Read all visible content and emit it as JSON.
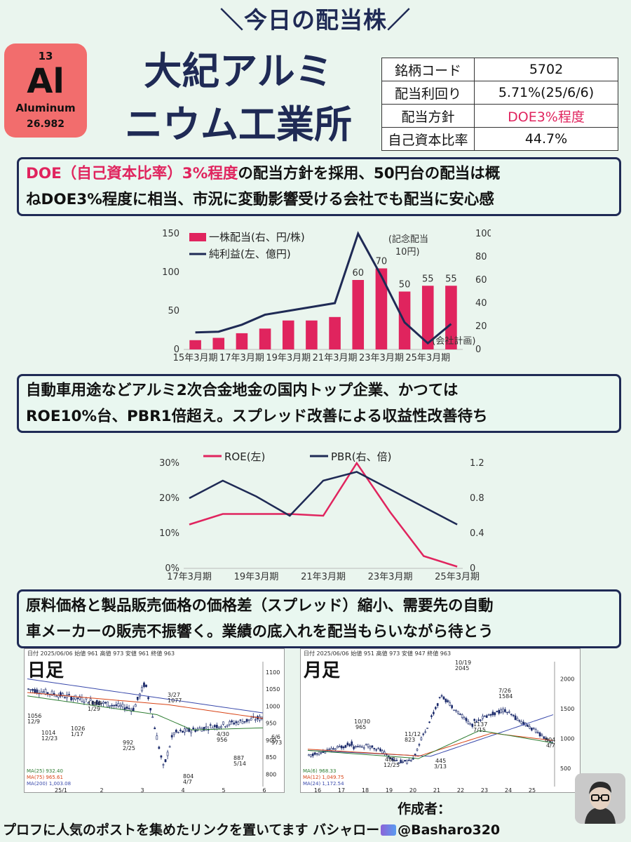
{
  "banner": "＼今日の配当株／",
  "element": {
    "number": "13",
    "symbol": "Al",
    "name": "Aluminum",
    "weight": "26.982"
  },
  "company": {
    "line1": "大紀アルミ",
    "line2": "ニウム工業所"
  },
  "info": {
    "rows": [
      {
        "key": "銘柄コード",
        "value": "5702"
      },
      {
        "key": "配当利回り",
        "value": "5.71%(25/6/6)"
      },
      {
        "key": "配当方針",
        "value": "DOE3%程度"
      },
      {
        "key": "自己資本比率",
        "value": "44.7%"
      }
    ]
  },
  "notes": {
    "n1": {
      "red": "DOE（自己資本比率）3%程度",
      "rest1": "の配当方針を採用、50円台の配当は概",
      "line2": "ねDOE3%程度に相当、市況に変動影響受ける会社でも配当に安心感"
    },
    "n2": {
      "line1": "自動車用途などアルミ2次合金地金の国内トップ企業、かつては",
      "line2": "ROE10%台、PBR1倍超え。スプレッド改善による収益性改善待ち"
    },
    "n3": {
      "line1": "原料価格と製品販売価格の価格差（スプレッド）縮小、需要先の自動",
      "line2": "車メーカーの販売不振響く。業績の底入れを配当もらいながら待とう"
    }
  },
  "colors": {
    "navy": "#1f2a55",
    "pink": "#e0245e",
    "tile": "#f26d6d"
  },
  "chart_data": [
    {
      "type": "bar",
      "legend": [
        "一株配当(右、円/株)",
        "純利益(左、億円)"
      ],
      "categories": [
        "15年3月期",
        "16年3月期",
        "17年3月期",
        "18年3月期",
        "19年3月期",
        "20年3月期",
        "21年3月期",
        "22年3月期",
        "23年3月期",
        "24年3月期",
        "25年3月期",
        "26年3月期"
      ],
      "xtick_labels": [
        "15年3月期",
        "17年3月期",
        "19年3月期",
        "21年3月期",
        "23年3月期",
        "25年3月期"
      ],
      "series": [
        {
          "name": "一株配当(右、円/株)",
          "axis": "right",
          "type": "bar",
          "values": [
            8,
            10,
            14,
            18,
            25,
            25,
            28,
            60,
            70,
            50,
            55,
            55
          ]
        },
        {
          "name": "純利益(左、億円)",
          "axis": "left",
          "type": "line",
          "values": [
            22,
            23,
            32,
            45,
            50,
            55,
            60,
            150,
            95,
            35,
            8,
            33
          ]
        }
      ],
      "data_labels": {
        "8": "60",
        "9": "70",
        "10": "50",
        "11": "55",
        "12": "55"
      },
      "annotations": [
        "(記念配当",
        "10円)",
        "(会社計画)"
      ],
      "yticks_left": [
        "0",
        "50",
        "100",
        "150"
      ],
      "yticks_right": [
        "0",
        "20",
        "40",
        "60",
        "80",
        "100"
      ],
      "ylim_left": [
        0,
        150
      ],
      "ylim_right": [
        0,
        100
      ]
    },
    {
      "type": "line",
      "legend": [
        "ROE(左)",
        "PBR(右、倍)"
      ],
      "categories": [
        "17年3月期",
        "18年3月期",
        "19年3月期",
        "20年3月期",
        "21年3月期",
        "22年3月期",
        "23年3月期",
        "24年3月期",
        "25年3月期"
      ],
      "xtick_labels": [
        "17年3月期",
        "19年3月期",
        "21年3月期",
        "23年3月期",
        "25年3月期"
      ],
      "series": [
        {
          "name": "ROE(左)",
          "axis": "left",
          "values": [
            12.5,
            15.5,
            15.5,
            15.5,
            15,
            30,
            16,
            3.5,
            0.5
          ]
        },
        {
          "name": "PBR(右、倍)",
          "axis": "right",
          "values": [
            0.8,
            1.0,
            0.82,
            0.6,
            1.0,
            1.1,
            0.9,
            0.7,
            0.5
          ]
        }
      ],
      "yticks_left": [
        "0%",
        "10%",
        "20%",
        "30%"
      ],
      "yticks_right": [
        "0",
        "0.4",
        "0.8",
        "1.2"
      ],
      "ylim_left": [
        0,
        30
      ],
      "ylim_right": [
        0,
        1.2
      ]
    }
  ],
  "daily": {
    "title": "日足",
    "header": "日付 2025/06/06  始値 961  高値 973  安値 961  終値 963",
    "ma": [
      "MA(25)  932.40",
      "MA(75)  965.61",
      "MA(200) 1,003.08"
    ],
    "yticks": [
      "1100",
      "1050",
      "1000",
      "950",
      "900",
      "850",
      "800"
    ],
    "xticks": [
      "25/1",
      "2",
      "3",
      "4",
      "5",
      "6"
    ],
    "labels": [
      "1056",
      "12/9",
      "1014",
      "12/23",
      "1026",
      "1/17",
      "1068",
      "1/29",
      "992",
      "2/25",
      "3/27",
      "1077",
      "804",
      "4/7",
      "4/30",
      "956",
      "887",
      "5/14",
      "6/6",
      "973"
    ]
  },
  "monthly": {
    "title": "月足",
    "header": "日付 2025/06/06  始値 951  高値 973  安値 947  終値 963",
    "ma": [
      "MA(6)  968.33",
      "MA(12)  1,049.75",
      "MA(24)  1,172.54"
    ],
    "yticks": [
      "2000",
      "1500",
      "1000",
      "500"
    ],
    "xticks": [
      "16",
      "17",
      "18",
      "19",
      "20",
      "21",
      "22",
      "23",
      "24",
      "25"
    ],
    "labels": [
      "10/19",
      "2045",
      "10/30",
      "965",
      "11/12",
      "823",
      "482",
      "12/25",
      "445",
      "3/13",
      "1137",
      "7/15",
      "7/26",
      "1584",
      "804",
      "4/7"
    ]
  },
  "creator_label": "作成者：",
  "footer": {
    "text": "プロフに人気のポストを集めたリンクを置いてます  バシャロー",
    "handle": "@Basharo320"
  }
}
